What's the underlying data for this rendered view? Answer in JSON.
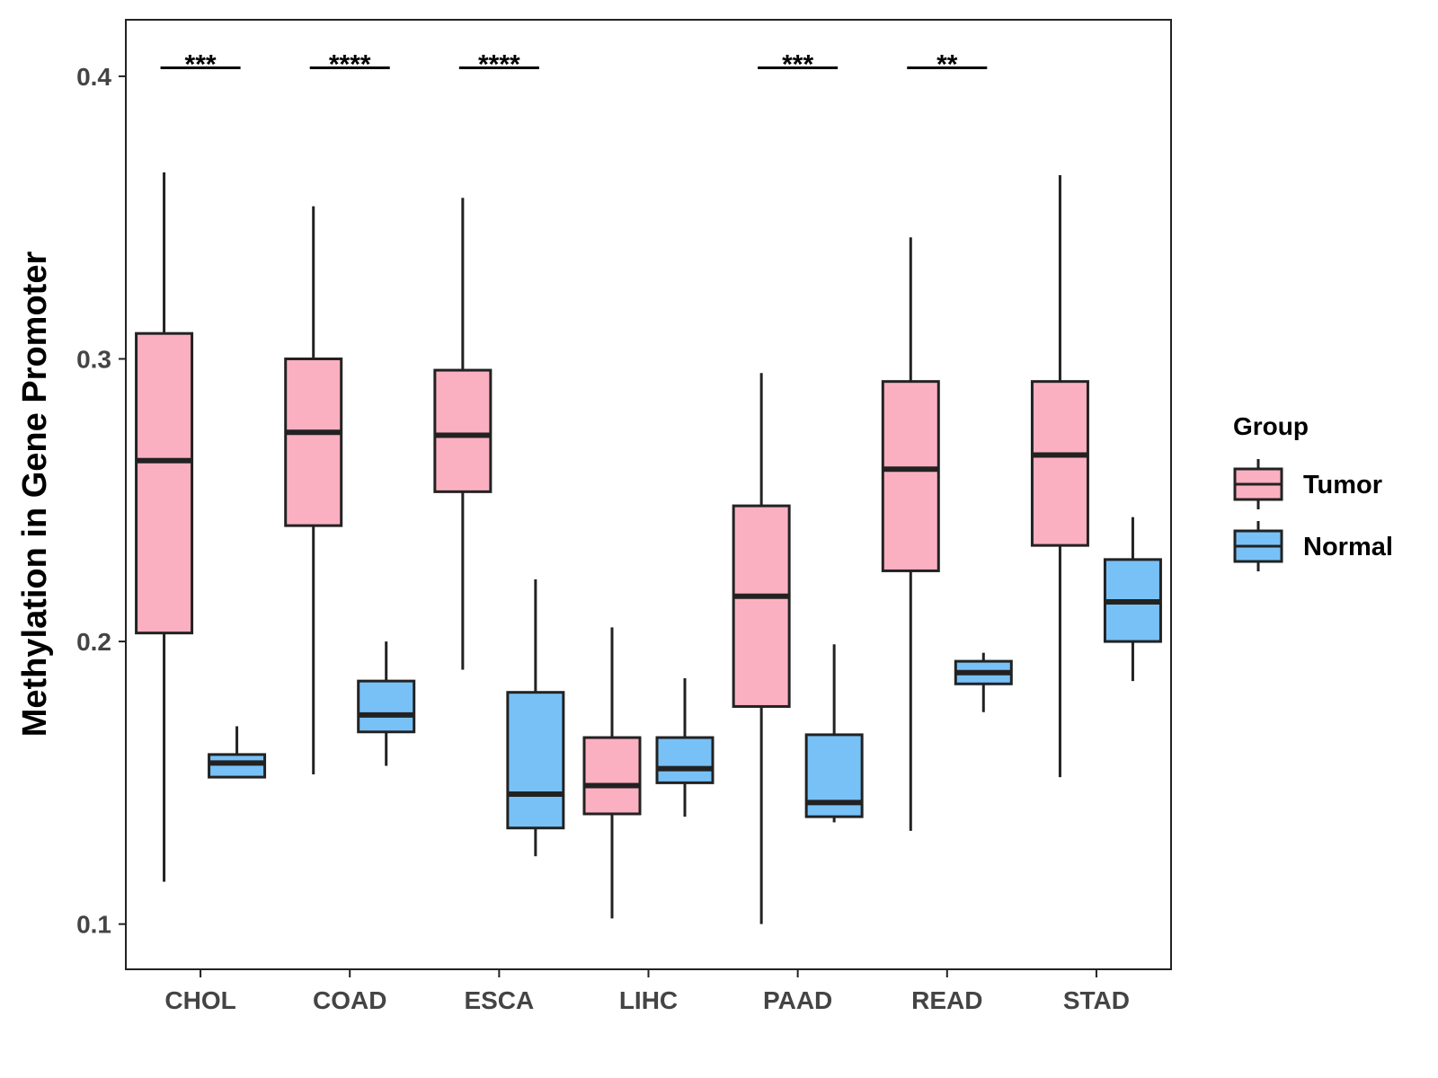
{
  "chart_data": {
    "type": "boxplot",
    "title": "",
    "xlabel": "",
    "ylabel": "Methylation in Gene Promoter",
    "ylim": [
      0.084,
      0.42
    ],
    "yticks": [
      0.1,
      0.2,
      0.3,
      0.4
    ],
    "ytick_labels": [
      "0.1",
      "0.2",
      "0.3",
      "0.4"
    ],
    "grid": false,
    "legend": {
      "title": "Group",
      "position": "right",
      "entries": [
        {
          "name": "Tumor",
          "color": "#FBB0C2"
        },
        {
          "name": "Normal",
          "color": "#78C1F7"
        }
      ]
    },
    "categories": [
      "CHOL",
      "COAD",
      "ESCA",
      "LIHC",
      "PAAD",
      "READ",
      "STAD"
    ],
    "series": [
      {
        "name": "Tumor",
        "color": "#FBB0C2",
        "boxes": [
          {
            "min": 0.115,
            "q1": 0.203,
            "median": 0.264,
            "q3": 0.309,
            "max": 0.366
          },
          {
            "min": 0.153,
            "q1": 0.241,
            "median": 0.274,
            "q3": 0.3,
            "max": 0.354
          },
          {
            "min": 0.19,
            "q1": 0.253,
            "median": 0.273,
            "q3": 0.296,
            "max": 0.357
          },
          {
            "min": 0.102,
            "q1": 0.139,
            "median": 0.149,
            "q3": 0.166,
            "max": 0.205
          },
          {
            "min": 0.1,
            "q1": 0.177,
            "median": 0.216,
            "q3": 0.248,
            "max": 0.295
          },
          {
            "min": 0.133,
            "q1": 0.225,
            "median": 0.261,
            "q3": 0.292,
            "max": 0.343
          },
          {
            "min": 0.152,
            "q1": 0.234,
            "median": 0.266,
            "q3": 0.292,
            "max": 0.365
          }
        ]
      },
      {
        "name": "Normal",
        "color": "#78C1F7",
        "boxes": [
          {
            "min": 0.152,
            "q1": 0.152,
            "median": 0.157,
            "q3": 0.16,
            "max": 0.17
          },
          {
            "min": 0.156,
            "q1": 0.168,
            "median": 0.174,
            "q3": 0.186,
            "max": 0.2
          },
          {
            "min": 0.124,
            "q1": 0.134,
            "median": 0.146,
            "q3": 0.182,
            "max": 0.222
          },
          {
            "min": 0.138,
            "q1": 0.15,
            "median": 0.155,
            "q3": 0.166,
            "max": 0.187
          },
          {
            "min": 0.136,
            "q1": 0.138,
            "median": 0.143,
            "q3": 0.167,
            "max": 0.199
          },
          {
            "min": 0.175,
            "q1": 0.185,
            "median": 0.189,
            "q3": 0.193,
            "max": 0.196
          },
          {
            "min": 0.186,
            "q1": 0.2,
            "median": 0.214,
            "q3": 0.229,
            "max": 0.244
          }
        ]
      }
    ],
    "annotations": [
      {
        "category": "CHOL",
        "text": "***",
        "y": 0.403
      },
      {
        "category": "COAD",
        "text": "****",
        "y": 0.403
      },
      {
        "category": "ESCA",
        "text": "****",
        "y": 0.403
      },
      {
        "category": "PAAD",
        "text": "***",
        "y": 0.403
      },
      {
        "category": "READ",
        "text": "**",
        "y": 0.403
      }
    ]
  }
}
